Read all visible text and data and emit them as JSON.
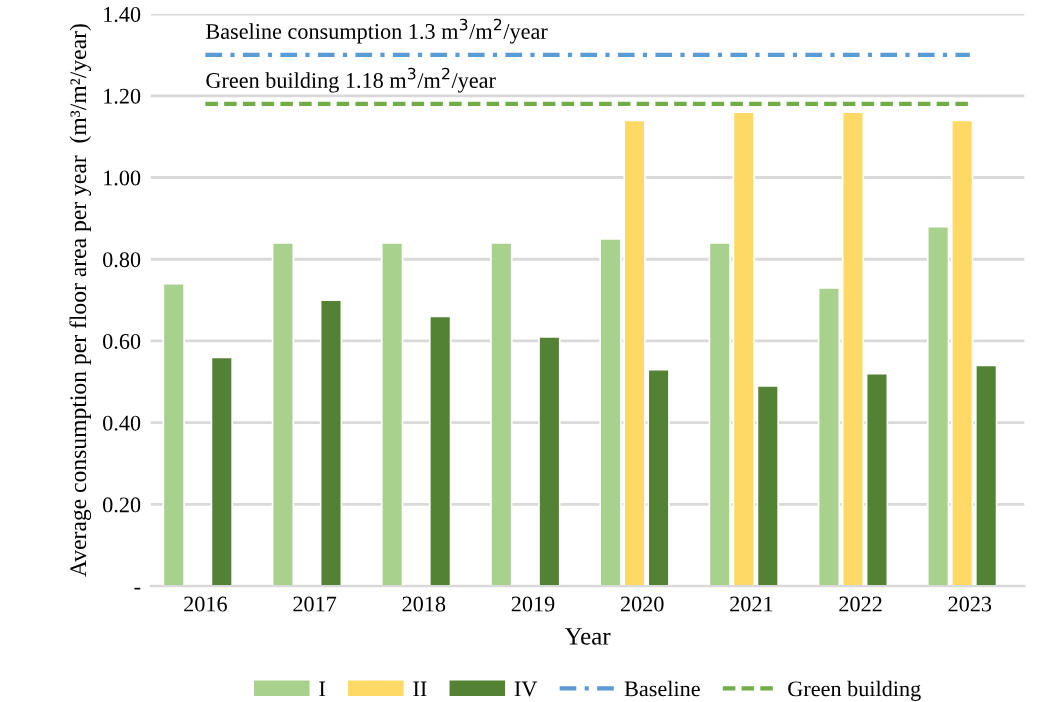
{
  "chart_data": {
    "type": "bar",
    "xlabel": "Year",
    "ylabel": "Average consumption per floor area per year  (m³/m²/year)",
    "categories": [
      "2016",
      "2017",
      "2018",
      "2019",
      "2020",
      "2021",
      "2022",
      "2023"
    ],
    "series": [
      {
        "name": "I",
        "color": "#a9d18e",
        "values": [
          0.74,
          0.84,
          0.84,
          0.84,
          0.85,
          0.84,
          0.73,
          0.88
        ]
      },
      {
        "name": "II",
        "color": "#ffd966",
        "values": [
          null,
          null,
          null,
          null,
          1.14,
          1.16,
          1.16,
          1.14
        ]
      },
      {
        "name": "IV",
        "color": "#548235",
        "values": [
          0.56,
          0.7,
          0.66,
          0.61,
          0.53,
          0.49,
          0.52,
          0.54
        ]
      },
      {
        "name": "Baseline",
        "type": "line",
        "line_style": "dashdot",
        "color": "#5b9bd5",
        "values": [
          1.3,
          1.3,
          1.3,
          1.3,
          1.3,
          1.3,
          1.3,
          1.3
        ]
      },
      {
        "name": "Green building",
        "type": "line",
        "line_style": "dashed",
        "color": "#70ad47",
        "values": [
          1.18,
          1.18,
          1.18,
          1.18,
          1.18,
          1.18,
          1.18,
          1.18
        ]
      }
    ],
    "annotations": [
      {
        "text": "Baseline consumption 1.3 m$^{3}$/m$^{2}$/year",
        "x": "2016",
        "y": 1.3
      },
      {
        "text": "Green building 1.18 m$^{3}$/m$^{2}$/year",
        "x": "2016",
        "y": 1.18
      }
    ],
    "ylim": [
      0,
      1.4
    ],
    "yticks": [
      {
        "value": 0,
        "label": "-"
      },
      {
        "value": 0.2,
        "label": "0.20"
      },
      {
        "value": 0.4,
        "label": "0.40"
      },
      {
        "value": 0.6,
        "label": "0.60"
      },
      {
        "value": 0.8,
        "label": "0.80"
      },
      {
        "value": 1.0,
        "label": "1.00"
      },
      {
        "value": 1.2,
        "label": "1.20"
      },
      {
        "value": 1.4,
        "label": "1.40"
      }
    ],
    "grid": "y",
    "legend": "bottom"
  }
}
